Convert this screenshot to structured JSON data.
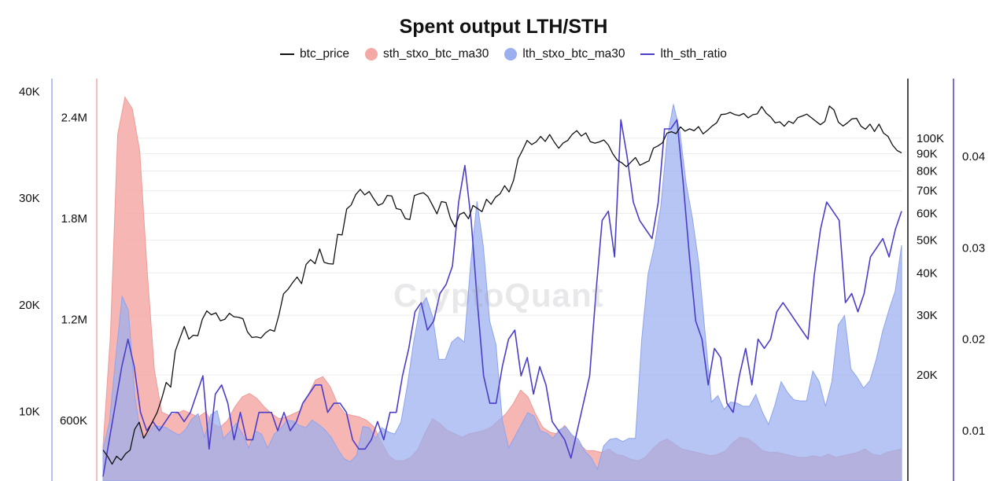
{
  "chart_data": {
    "type": "area",
    "title": "Spent output LTH/STH",
    "legend_position": "top-center",
    "grid": true,
    "watermark": "CryptoQuant",
    "axes": {
      "left_outer": {
        "series": "lth_stxo_btc_ma30",
        "ticks": [
          "10K",
          "20K",
          "30K",
          "40K"
        ],
        "tick_values": [
          10000,
          20000,
          30000,
          40000
        ],
        "range": [
          3500,
          41200
        ]
      },
      "left_inner": {
        "series": "sth_stxo_btc_ma30",
        "ticks": [
          "600K",
          "1.2M",
          "1.8M",
          "2.4M"
        ],
        "tick_values": [
          600000,
          1200000,
          1800000,
          2400000
        ],
        "range": [
          240000,
          2630000
        ]
      },
      "right_inner": {
        "series": "btc_price",
        "scale": "log",
        "ticks": [
          "20K",
          "30K",
          "40K",
          "50K",
          "60K",
          "70K",
          "80K",
          "90K",
          "100K"
        ],
        "tick_values": [
          20000,
          30000,
          40000,
          50000,
          60000,
          70000,
          80000,
          90000,
          100000
        ],
        "range": [
          9720,
          150000
        ]
      },
      "right_outer": {
        "series": "lth_sth_ratio",
        "ticks": [
          "0.01",
          "0.02",
          "0.03",
          "0.04"
        ],
        "tick_values": [
          0.01,
          0.02,
          0.03,
          0.04
        ],
        "range": [
          0.0045,
          0.0485
        ]
      }
    },
    "series": [
      {
        "name": "btc_price",
        "type": "line",
        "color": "#111111",
        "axis": "right_inner",
        "values": [
          12000,
          11500,
          10900,
          11500,
          11200,
          11700,
          12000,
          13800,
          14500,
          13000,
          13700,
          14600,
          15500,
          17000,
          19000,
          18400,
          23500,
          25600,
          27800,
          25500,
          26200,
          26100,
          29200,
          30900,
          30100,
          30500,
          28900,
          29200,
          30400,
          29700,
          29600,
          29300,
          26800,
          25800,
          25900,
          25700,
          26600,
          27200,
          26900,
          30100,
          34700,
          35800,
          37400,
          38900,
          37200,
          42400,
          43800,
          42600,
          47100,
          43000,
          42600,
          42500,
          52000,
          51800,
          61800,
          63500,
          68100,
          70600,
          68000,
          69600,
          66200,
          63300,
          64200,
          67800,
          67500,
          62000,
          61500,
          57900,
          57500,
          67700,
          68500,
          69000,
          67300,
          63500,
          59800,
          65000,
          64600,
          58000,
          54700,
          59500,
          60400,
          57800,
          63300,
          62000,
          60700,
          66000,
          63800,
          67000,
          68500,
          72400,
          69400,
          75100,
          87000,
          92300,
          98500,
          95800,
          97500,
          101200,
          97800,
          102500,
          97500,
          93400,
          96800,
          98500,
          102700,
          105300,
          101500,
          103700,
          97700,
          96700,
          97500,
          98800,
          95500,
          89900,
          86100,
          84600,
          82400,
          85000,
          87700,
          83200,
          84500,
          85700,
          93500,
          94900,
          97000,
          103500,
          104500,
          103200,
          108000,
          104900,
          106600,
          105200,
          108200,
          103000,
          105500,
          108700,
          111000,
          117500,
          117800,
          119200,
          117500,
          116700,
          118300,
          114800,
          117300,
          118000,
          124000,
          118500,
          115500,
          111000,
          111800,
          108500,
          112300,
          110600,
          115100,
          116300,
          117800,
          115000,
          112200,
          109600,
          112100,
          124500,
          121200,
          111500,
          108700,
          111000,
          114000,
          114500,
          108500,
          106300,
          110100,
          104700,
          110100,
          103500,
          101200,
          95500,
          92000,
          90500
        ]
      },
      {
        "name": "sth_stxo_btc_ma30",
        "type": "area",
        "color": "#f4a9a6",
        "axis": "left_inner",
        "values": [
          450000,
          1100000,
          2300000,
          2520000,
          2450000,
          2200000,
          1500000,
          900000,
          650000,
          630000,
          640000,
          660000,
          640000,
          620000,
          650000,
          580000,
          560000,
          600000,
          680000,
          740000,
          760000,
          730000,
          680000,
          640000,
          610000,
          620000,
          640000,
          660000,
          750000,
          840000,
          860000,
          800000,
          700000,
          640000,
          630000,
          620000,
          600000,
          560000,
          470000,
          390000,
          360000,
          360000,
          380000,
          430000,
          530000,
          610000,
          580000,
          540000,
          520000,
          500000,
          520000,
          530000,
          540000,
          560000,
          600000,
          640000,
          700000,
          780000,
          740000,
          640000,
          560000,
          530000,
          520000,
          570000,
          510000,
          460000,
          420000,
          420000,
          410000,
          430000,
          400000,
          390000,
          370000,
          360000,
          380000,
          430000,
          470000,
          490000,
          460000,
          430000,
          420000,
          410000,
          400000,
          390000,
          400000,
          420000,
          470000,
          500000,
          490000,
          460000,
          420000,
          410000,
          410000,
          400000,
          390000,
          380000,
          380000,
          390000,
          380000,
          400000,
          380000,
          390000,
          400000,
          410000,
          430000,
          400000,
          390000,
          410000,
          420000,
          430000
        ]
      },
      {
        "name": "lth_stxo_btc_ma30",
        "type": "area",
        "color": "#9aaff0",
        "axis": "left_outer",
        "values": [
          6500,
          9000,
          15000,
          20800,
          19500,
          11500,
          7600,
          7800,
          8700,
          8600,
          8500,
          8100,
          7800,
          8300,
          9300,
          9800,
          7600,
          9700,
          10100,
          7500,
          8100,
          8900,
          7900,
          6600,
          8200,
          7900,
          6600,
          7900,
          8400,
          9200,
          9100,
          8700,
          8500,
          9200,
          8800,
          8300,
          7600,
          6500,
          5600,
          5300,
          5900,
          8600,
          8500,
          7500,
          8500,
          8100,
          7900,
          9000,
          12400,
          16500,
          19700,
          20700,
          18900,
          14900,
          14900,
          16500,
          17000,
          16500,
          23800,
          29700,
          25500,
          18500,
          16300,
          9200,
          6600,
          7700,
          8800,
          9900,
          9600,
          8200,
          8000,
          7500,
          8300,
          8600,
          7800,
          7400,
          6300,
          5700,
          4600,
          6800,
          7400,
          7500,
          7200,
          7500,
          7500,
          16800,
          22900,
          25500,
          29200,
          35500,
          38800,
          36300,
          31400,
          28100,
          23900,
          17300,
          10900,
          11500,
          10200,
          10900,
          10800,
          10500,
          10500,
          11600,
          10000,
          8800,
          10600,
          12800,
          11800,
          11100,
          11000,
          11000,
          13800,
          12800,
          10500,
          12800,
          18100,
          19000,
          14000,
          13200,
          12200,
          12900,
          14900,
          17500,
          19500,
          21300,
          25600
        ]
      },
      {
        "name": "lth_sth_ratio",
        "type": "line",
        "color": "#4a3ec9",
        "axis": "right_outer",
        "values": [
          0.005,
          0.009,
          0.013,
          0.017,
          0.02,
          0.017,
          0.012,
          0.01,
          0.011,
          0.01,
          0.011,
          0.012,
          0.012,
          0.011,
          0.012,
          0.014,
          0.016,
          0.008,
          0.014,
          0.015,
          0.013,
          0.009,
          0.012,
          0.009,
          0.009,
          0.012,
          0.012,
          0.012,
          0.01,
          0.012,
          0.01,
          0.011,
          0.013,
          0.014,
          0.015,
          0.015,
          0.012,
          0.013,
          0.013,
          0.012,
          0.009,
          0.008,
          0.008,
          0.009,
          0.011,
          0.009,
          0.012,
          0.012,
          0.016,
          0.019,
          0.023,
          0.024,
          0.021,
          0.022,
          0.025,
          0.026,
          0.028,
          0.035,
          0.039,
          0.033,
          0.024,
          0.016,
          0.013,
          0.013,
          0.017,
          0.02,
          0.021,
          0.016,
          0.018,
          0.014,
          0.017,
          0.015,
          0.011,
          0.01,
          0.009,
          0.007,
          0.01,
          0.013,
          0.016,
          0.025,
          0.033,
          0.034,
          0.029,
          0.044,
          0.04,
          0.035,
          0.033,
          0.032,
          0.031,
          0.035,
          0.043,
          0.043,
          0.044,
          0.037,
          0.029,
          0.022,
          0.02,
          0.015,
          0.019,
          0.018,
          0.013,
          0.012,
          0.016,
          0.019,
          0.015,
          0.02,
          0.019,
          0.02,
          0.023,
          0.024,
          0.023,
          0.022,
          0.021,
          0.02,
          0.027,
          0.032,
          0.035,
          0.034,
          0.033,
          0.024,
          0.025,
          0.023,
          0.025,
          0.029,
          0.03,
          0.031,
          0.029,
          0.032,
          0.034
        ]
      }
    ]
  }
}
